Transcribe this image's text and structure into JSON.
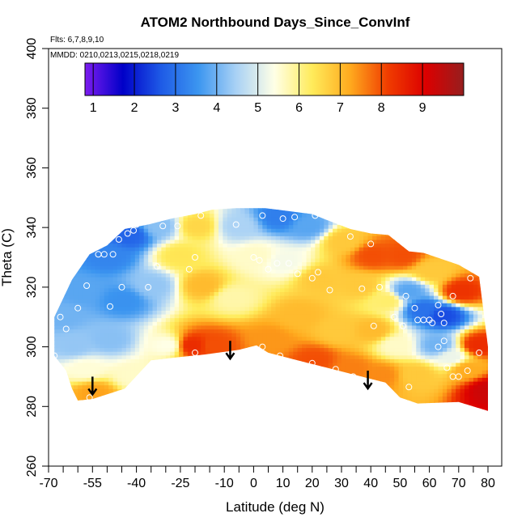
{
  "chart_data": {
    "type": "heatmap",
    "title": "ATOM2 Northbound Days_Since_ConvInf",
    "subtitle_flights": "Flts: 6,7,8,9,10",
    "subtitle_dates": "MMDD: 0210,0213,0215,0218,0219",
    "xlabel": "Latitude (deg N)",
    "ylabel": "Theta (C)",
    "xlim": [
      -70,
      85
    ],
    "ylim": [
      260,
      400
    ],
    "x_ticks": [
      -70,
      -55,
      -40,
      -25,
      -10,
      0,
      10,
      20,
      30,
      40,
      50,
      60,
      70,
      80
    ],
    "x_minor_ticks": [
      -65,
      -60,
      -50,
      -45,
      -35,
      -30,
      -20,
      -15,
      -5,
      5,
      15,
      25,
      35,
      45,
      55,
      65,
      75,
      85
    ],
    "y_ticks": [
      260,
      280,
      300,
      320,
      340,
      360,
      380,
      400
    ],
    "colorbar": {
      "range": [
        0.8,
        10
      ],
      "ticks": [
        1,
        2,
        3,
        4,
        5,
        6,
        7,
        8,
        9
      ],
      "colors": [
        "#7d1cf0",
        "#0000c8",
        "#1e5ae6",
        "#3c96f0",
        "#aad2f5",
        "#ffffe6",
        "#ffeb5a",
        "#ffaa1e",
        "#f03c00",
        "#dc0000",
        "#961e1e"
      ]
    },
    "arrows": [
      {
        "lat": -55,
        "theta": 290
      },
      {
        "lat": -8,
        "theta": 302
      },
      {
        "lat": 39,
        "theta": 292
      }
    ],
    "field": [
      {
        "lat": -66,
        "theta": 310,
        "value": 4.0
      },
      {
        "lat": -62,
        "theta": 300,
        "value": 4.3
      },
      {
        "lat": -60,
        "theta": 318,
        "value": 3.8
      },
      {
        "lat": -58,
        "theta": 292,
        "value": 5.5
      },
      {
        "lat": -55,
        "theta": 284,
        "value": 7.3
      },
      {
        "lat": -50,
        "theta": 330,
        "value": 3.3
      },
      {
        "lat": -50,
        "theta": 302,
        "value": 4.2
      },
      {
        "lat": -45,
        "theta": 315,
        "value": 3.5
      },
      {
        "lat": -43,
        "theta": 337,
        "value": 2.8
      },
      {
        "lat": -42,
        "theta": 290,
        "value": 5.6
      },
      {
        "lat": -35,
        "theta": 320,
        "value": 4.3
      },
      {
        "lat": -33,
        "theta": 340,
        "value": 4.2
      },
      {
        "lat": -30,
        "theta": 300,
        "value": 5.4
      },
      {
        "lat": -26,
        "theta": 330,
        "value": 6.4
      },
      {
        "lat": -22,
        "theta": 300,
        "value": 8.4
      },
      {
        "lat": -20,
        "theta": 340,
        "value": 6.6
      },
      {
        "lat": -18,
        "theta": 320,
        "value": 7.0
      },
      {
        "lat": -14,
        "theta": 300,
        "value": 8.0
      },
      {
        "lat": -8,
        "theta": 316,
        "value": 5.8
      },
      {
        "lat": -6,
        "theta": 340,
        "value": 4.5
      },
      {
        "lat": 0,
        "theta": 330,
        "value": 5.6
      },
      {
        "lat": 5,
        "theta": 302,
        "value": 7.4
      },
      {
        "lat": 8,
        "theta": 343,
        "value": 3.2
      },
      {
        "lat": 10,
        "theta": 328,
        "value": 5.3
      },
      {
        "lat": 15,
        "theta": 310,
        "value": 7.0
      },
      {
        "lat": 18,
        "theta": 340,
        "value": 3.8
      },
      {
        "lat": 20,
        "theta": 295,
        "value": 8.0
      },
      {
        "lat": 22,
        "theta": 322,
        "value": 6.8
      },
      {
        "lat": 28,
        "theta": 305,
        "value": 6.8
      },
      {
        "lat": 30,
        "theta": 335,
        "value": 6.8
      },
      {
        "lat": 33,
        "theta": 292,
        "value": 7.6
      },
      {
        "lat": 36,
        "theta": 320,
        "value": 6.8
      },
      {
        "lat": 40,
        "theta": 330,
        "value": 8.0
      },
      {
        "lat": 40,
        "theta": 305,
        "value": 7.0
      },
      {
        "lat": 43,
        "theta": 290,
        "value": 7.5
      },
      {
        "lat": 45,
        "theta": 315,
        "value": 6.2
      },
      {
        "lat": 48,
        "theta": 300,
        "value": 5.6
      },
      {
        "lat": 50,
        "theta": 330,
        "value": 8.0
      },
      {
        "lat": 52,
        "theta": 318,
        "value": 3.8
      },
      {
        "lat": 55,
        "theta": 290,
        "value": 6.8
      },
      {
        "lat": 57,
        "theta": 312,
        "value": 3.0
      },
      {
        "lat": 60,
        "theta": 325,
        "value": 6.8
      },
      {
        "lat": 62,
        "theta": 300,
        "value": 4.0
      },
      {
        "lat": 64,
        "theta": 310,
        "value": 2.5
      },
      {
        "lat": 67,
        "theta": 296,
        "value": 5.2
      },
      {
        "lat": 70,
        "theta": 318,
        "value": 8.3
      },
      {
        "lat": 72,
        "theta": 292,
        "value": 7.2
      },
      {
        "lat": 76,
        "theta": 300,
        "value": 8.4
      },
      {
        "lat": 79,
        "theta": 285,
        "value": 9.3
      }
    ],
    "domain_bounds": [
      [
        -68,
        310
      ],
      [
        -68,
        297
      ],
      [
        -64,
        292
      ],
      [
        -62,
        286
      ],
      [
        -60,
        282
      ],
      [
        -55,
        282.5
      ],
      [
        -44,
        286
      ],
      [
        -35,
        295.5
      ],
      [
        -26,
        296.5
      ],
      [
        -16,
        297.5
      ],
      [
        -5,
        299
      ],
      [
        1,
        300.5
      ],
      [
        5,
        298
      ],
      [
        15,
        295.5
      ],
      [
        25,
        293
      ],
      [
        35,
        290.5
      ],
      [
        45,
        288
      ],
      [
        50,
        283
      ],
      [
        56,
        281
      ],
      [
        70,
        281.5
      ],
      [
        80,
        278.5
      ],
      [
        80,
        300
      ],
      [
        77,
        323.5
      ],
      [
        70,
        327.5
      ],
      [
        58,
        331.5
      ],
      [
        53,
        332
      ],
      [
        46,
        337.5
      ],
      [
        40,
        338
      ],
      [
        33,
        339.5
      ],
      [
        25,
        342.5
      ],
      [
        20,
        344.5
      ],
      [
        12,
        345.5
      ],
      [
        4,
        346.5
      ],
      [
        -6,
        346.5
      ],
      [
        -14,
        346
      ],
      [
        -20,
        344.5
      ],
      [
        -28,
        343
      ],
      [
        -36,
        341
      ],
      [
        -44,
        339.5
      ],
      [
        -50,
        334
      ],
      [
        -56,
        331
      ],
      [
        -62,
        322.5
      ]
    ],
    "sample_points": [
      [
        -68,
        297
      ],
      [
        -66,
        310
      ],
      [
        -64,
        306
      ],
      [
        -60,
        313
      ],
      [
        -57,
        320.5
      ],
      [
        -56,
        283
      ],
      [
        -53,
        331
      ],
      [
        -51,
        331
      ],
      [
        -49,
        313.5
      ],
      [
        -48,
        331
      ],
      [
        -46,
        336
      ],
      [
        -45,
        320
      ],
      [
        -43,
        338
      ],
      [
        -41,
        339
      ],
      [
        -40,
        341
      ],
      [
        -36,
        320
      ],
      [
        -33,
        327
      ],
      [
        -31,
        340.5
      ],
      [
        -26,
        340.5
      ],
      [
        -22,
        326
      ],
      [
        -20,
        330
      ],
      [
        -20,
        298
      ],
      [
        -18,
        344
      ],
      [
        -6,
        341
      ],
      [
        0,
        330
      ],
      [
        2,
        329
      ],
      [
        3,
        300
      ],
      [
        3,
        344
      ],
      [
        5,
        326
      ],
      [
        8,
        328
      ],
      [
        9,
        297
      ],
      [
        10,
        343
      ],
      [
        12,
        328
      ],
      [
        14,
        343.5
      ],
      [
        15,
        324.5
      ],
      [
        20,
        323
      ],
      [
        20,
        294.5
      ],
      [
        21,
        344
      ],
      [
        22,
        325
      ],
      [
        26,
        319
      ],
      [
        28,
        292.5
      ],
      [
        33,
        337
      ],
      [
        34,
        290
      ],
      [
        37,
        319.5
      ],
      [
        40,
        334.5
      ],
      [
        41,
        307
      ],
      [
        43,
        320
      ],
      [
        45,
        286
      ],
      [
        48,
        310
      ],
      [
        51,
        307
      ],
      [
        52,
        317
      ],
      [
        53,
        286.5
      ],
      [
        55,
        313
      ],
      [
        56,
        309
      ],
      [
        58,
        309
      ],
      [
        60,
        309
      ],
      [
        61,
        308
      ],
      [
        63,
        314
      ],
      [
        63,
        300
      ],
      [
        64,
        311
      ],
      [
        65,
        308
      ],
      [
        65,
        302
      ],
      [
        66,
        293
      ],
      [
        68,
        317
      ],
      [
        68,
        290
      ],
      [
        70,
        290
      ],
      [
        73,
        292
      ],
      [
        74,
        323
      ],
      [
        77,
        298
      ]
    ]
  }
}
